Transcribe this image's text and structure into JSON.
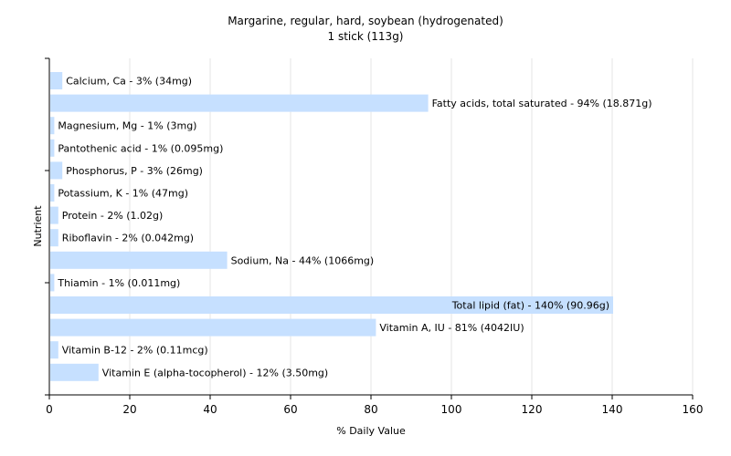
{
  "chart_data": {
    "type": "bar",
    "orientation": "horizontal",
    "title": "Margarine, regular, hard, soybean (hydrogenated)",
    "subtitle": "1 stick (113g)",
    "xlabel": "% Daily Value",
    "ylabel": "Nutrient",
    "xlim": [
      0,
      160
    ],
    "xticks": [
      0,
      20,
      40,
      60,
      80,
      100,
      120,
      140,
      160
    ],
    "grid": "vertical",
    "bar_color": "#c6e0ff",
    "categories": [
      "Calcium, Ca",
      "Fatty acids, total saturated",
      "Magnesium, Mg",
      "Pantothenic acid",
      "Phosphorus, P",
      "Potassium, K",
      "Protein",
      "Riboflavin",
      "Sodium, Na",
      "Thiamin",
      "Total lipid (fat)",
      "Vitamin A, IU",
      "Vitamin B-12",
      "Vitamin E (alpha-tocopherol)"
    ],
    "values": [
      3,
      94,
      1,
      1,
      3,
      1,
      2,
      2,
      44,
      1,
      140,
      81,
      2,
      12
    ],
    "labels": [
      "Calcium, Ca - 3% (34mg)",
      "Fatty acids, total saturated - 94% (18.871g)",
      "Magnesium, Mg - 1% (3mg)",
      "Pantothenic acid - 1% (0.095mg)",
      "Phosphorus, P - 3% (26mg)",
      "Potassium, K - 1% (47mg)",
      "Protein - 2% (1.02g)",
      "Riboflavin - 2% (0.042mg)",
      "Sodium, Na - 44% (1066mg)",
      "Thiamin - 1% (0.011mg)",
      "Total lipid (fat) - 140% (90.96g)",
      "Vitamin A, IU - 81% (4042IU)",
      "Vitamin B-12 - 2% (0.11mcg)",
      "Vitamin E (alpha-tocopherol) - 12% (3.50mg)"
    ]
  }
}
